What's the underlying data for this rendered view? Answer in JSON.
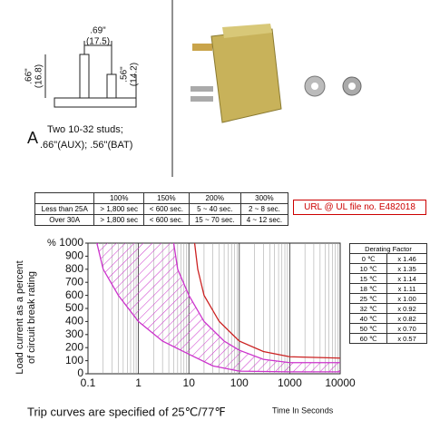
{
  "drawing": {
    "dims": [
      ".69\"",
      "(17.5)",
      ".66\"",
      "(16.8)",
      ".56\"",
      "(14.2)"
    ],
    "label": "A",
    "caption": [
      "Two 10-32 studs;",
      ".66\"(AUX); .56\"(BAT)"
    ]
  },
  "table": {
    "header": [
      "100%",
      "150%",
      "200%",
      "300%"
    ],
    "rows": [
      [
        "Less than 25A",
        "> 1,800 sec",
        "< 600 sec.",
        "5 ~ 40 sec.",
        "2 ~ 8 sec."
      ],
      [
        "Over 30A",
        "> 1,800 sec",
        "< 600 sec.",
        "15 ~ 70 sec.",
        "4 ~ 12 sec."
      ]
    ]
  },
  "url_note": "URL @ UL file no. E482018",
  "derating": {
    "title": "Derating Factor",
    "rows": [
      [
        "0 ℃",
        "x 1.46"
      ],
      [
        "10 ℃",
        "x 1.35"
      ],
      [
        "15 ℃",
        "x 1.14"
      ],
      [
        "18 ℃",
        "x 1.11"
      ],
      [
        "25 ℃",
        "x 1.00"
      ],
      [
        "32 ℃",
        "x 0.92"
      ],
      [
        "40 ℃",
        "x 0.82"
      ],
      [
        "50 ℃",
        "x 0.70"
      ],
      [
        "60 ℃",
        "x 0.57"
      ]
    ]
  },
  "chart_data": {
    "type": "line",
    "y_label": [
      "Load current as a percent",
      "of circuit break rating"
    ],
    "y_unit": "%",
    "x_label": "Time In Seconds",
    "footer": "Trip curves are specified of 25℃/77℉",
    "x_log": true,
    "xlim": [
      0.1,
      10000
    ],
    "xticks": [
      0.1,
      1,
      10,
      100,
      1000,
      10000
    ],
    "ylim": [
      0,
      1000
    ],
    "yticks": [
      0,
      100,
      200,
      300,
      400,
      500,
      600,
      700,
      800,
      900,
      1000
    ],
    "series": [
      {
        "color": "#cc33cc",
        "x": [
          0.15,
          0.2,
          0.4,
          1,
          3,
          10,
          30,
          100,
          1000,
          10000
        ],
        "values": [
          1000,
          800,
          600,
          400,
          250,
          150,
          60,
          20,
          15,
          15
        ]
      },
      {
        "color": "#cc33cc",
        "x": [
          5,
          6,
          10,
          20,
          50,
          100,
          300,
          1000,
          10000
        ],
        "values": [
          1000,
          800,
          600,
          400,
          250,
          180,
          110,
          85,
          85
        ]
      },
      {
        "color": "#cc2222",
        "x": [
          13,
          15,
          20,
          40,
          100,
          300,
          1000,
          10000
        ],
        "values": [
          1000,
          800,
          600,
          400,
          250,
          170,
          130,
          120
        ]
      }
    ]
  }
}
